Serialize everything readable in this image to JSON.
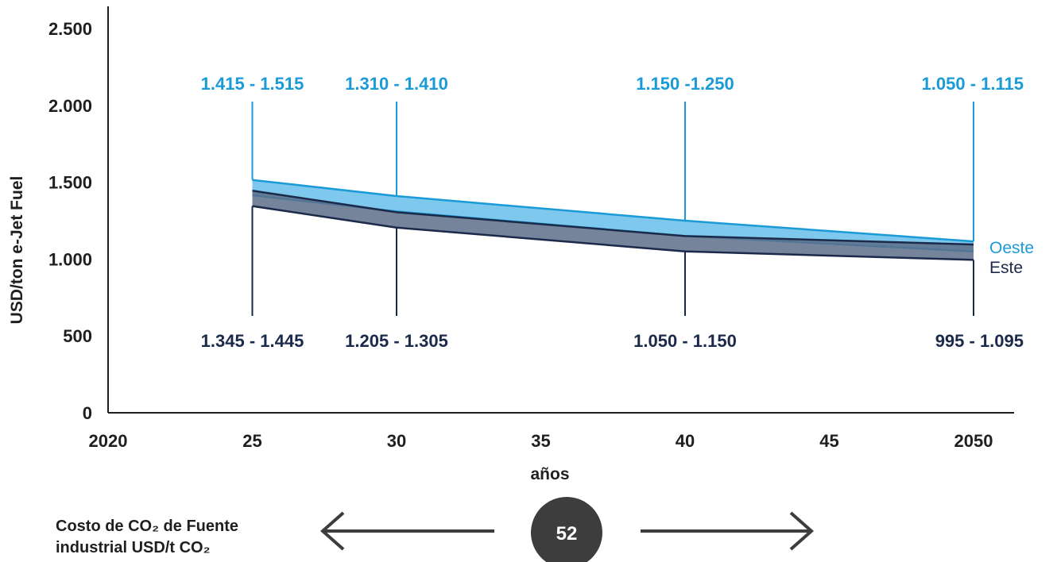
{
  "colors": {
    "oeste": "#1a9bd7",
    "oeste_fill": "#7dc8ec",
    "este": "#1b2a4a",
    "este_fill": "#5d6f8a",
    "axis": "#1f1f1f",
    "badge": "#3d3d3d"
  },
  "chart_data": {
    "type": "area",
    "ylabel": "USD/ton e-Jet Fuel",
    "xlabel": "años",
    "x_ticks": [
      2020,
      2025,
      2030,
      2035,
      2040,
      2045,
      2050
    ],
    "x_tick_labels": [
      "2020",
      "25",
      "30",
      "35",
      "40",
      "45",
      "2050"
    ],
    "y_ticks": [
      0,
      500,
      1000,
      1500,
      2000,
      2500
    ],
    "y_tick_labels": [
      "0",
      "500",
      "1.000",
      "1.500",
      "2.000",
      "2.500"
    ],
    "xlim": [
      2020,
      2050
    ],
    "ylim": [
      0,
      2500
    ],
    "series": [
      {
        "name": "Oeste",
        "x": [
          2025,
          2030,
          2040,
          2050
        ],
        "low": [
          1415,
          1310,
          1150,
          1050
        ],
        "high": [
          1515,
          1410,
          1250,
          1115
        ],
        "labels": [
          "1.415 - 1.515",
          "1.310 - 1.410",
          "1.150 -1.250",
          "1.050 - 1.115"
        ]
      },
      {
        "name": "Este",
        "x": [
          2025,
          2030,
          2040,
          2050
        ],
        "low": [
          1345,
          1205,
          1050,
          995
        ],
        "high": [
          1445,
          1305,
          1150,
          1095
        ],
        "labels": [
          "1.345 - 1.445",
          "1.205 - 1.305",
          "1.050 - 1.150",
          "995 - 1.095"
        ]
      }
    ]
  },
  "footer": {
    "line1": "Costo de CO₂ de Fuente",
    "line2": "industrial USD/t CO₂",
    "badge_value": "52"
  }
}
